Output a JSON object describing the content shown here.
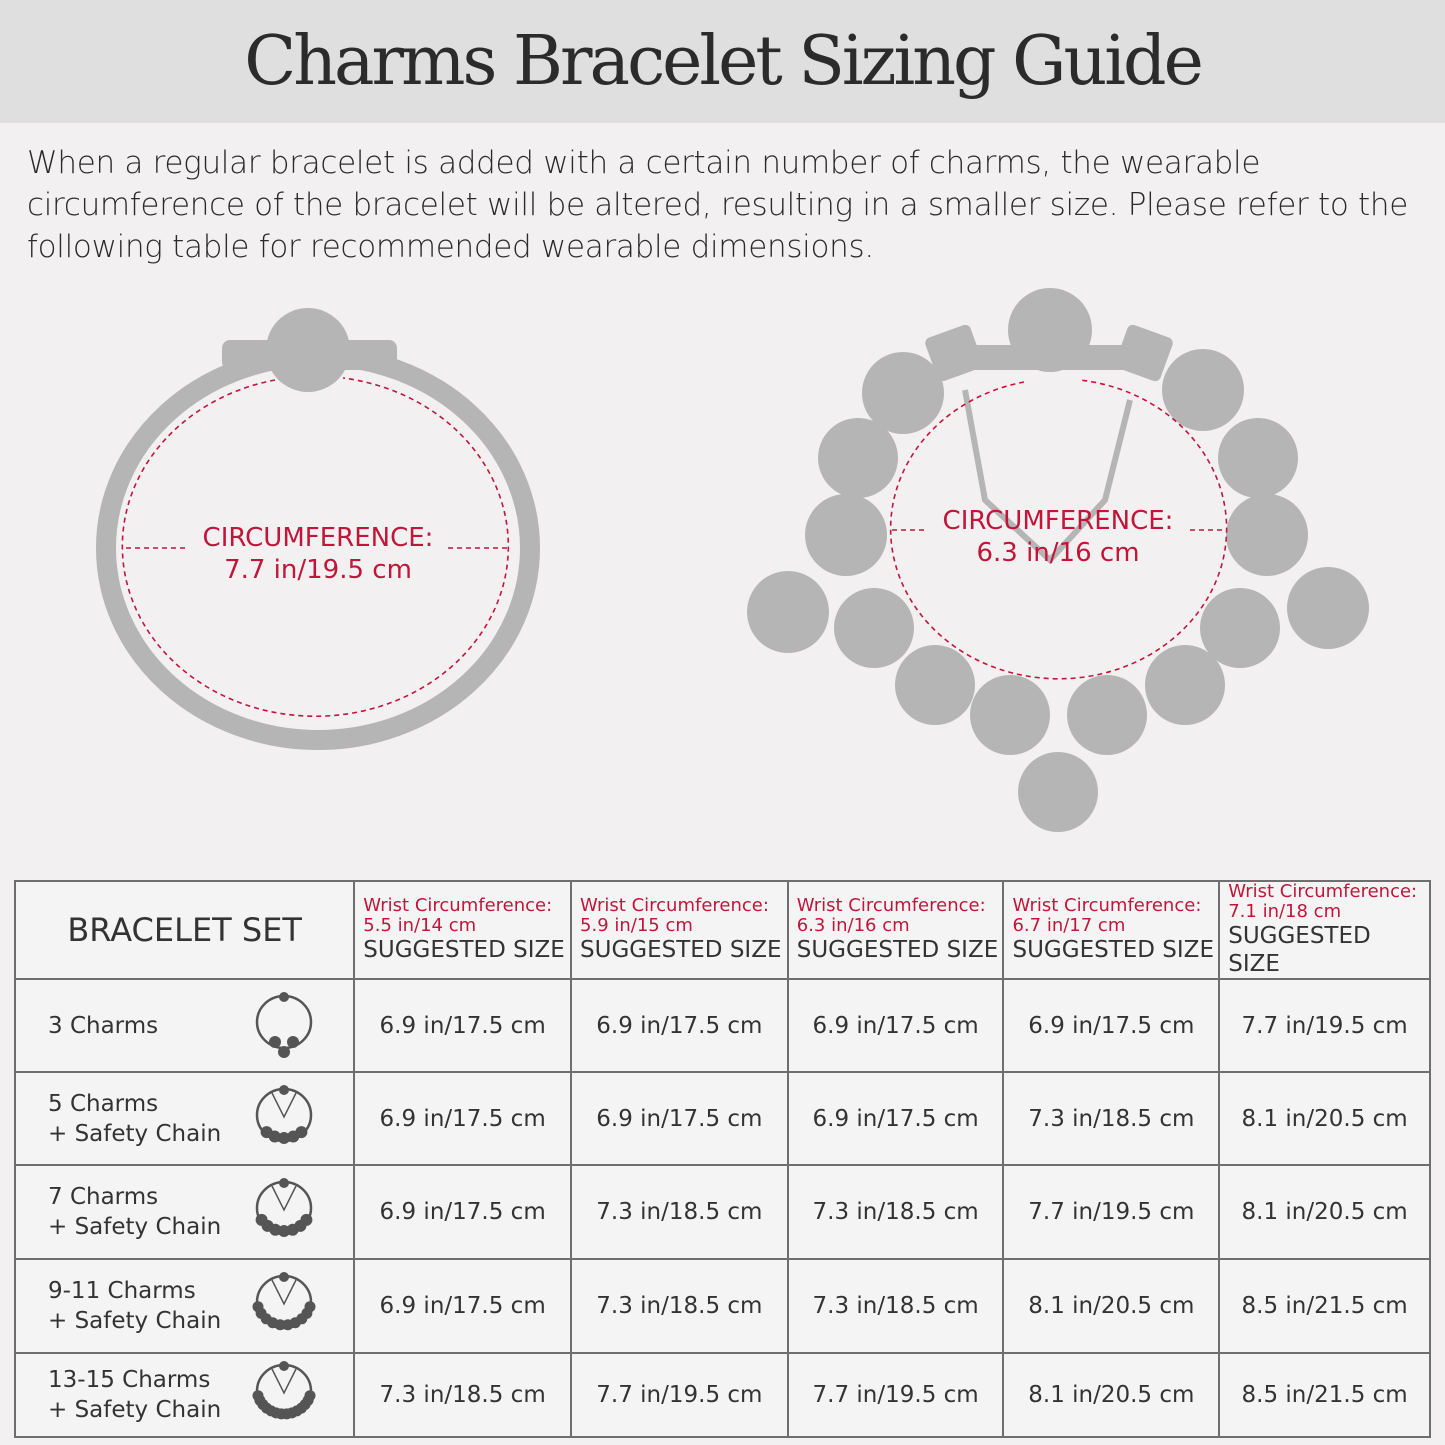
{
  "title": "Charms Bracelet Sizing Guide",
  "intro": "When a regular bracelet is added with a certain number of charms, the wearable circumference of the bracelet will be altered, resulting in a smaller size. Please refer to the following table for recommended wearable dimensions.",
  "diagrams": {
    "left": {
      "label": "CIRCUMFERENCE:",
      "value": "7.7 in/19.5 cm"
    },
    "right": {
      "label": "CIRCUMFERENCE:",
      "value": "6.3 in/16 cm"
    }
  },
  "colors": {
    "accent": "#c0163a",
    "bead": "#b5b5b5",
    "header_bg": "#e0dfdf"
  },
  "table": {
    "first_header": "BRACELET SET",
    "columns": [
      {
        "wrist_label": "Wrist Circumference:",
        "wrist": "5.5 in/14 cm",
        "suggested": "SUGGESTED SIZE"
      },
      {
        "wrist_label": "Wrist Circumference:",
        "wrist": "5.9 in/15 cm",
        "suggested": "SUGGESTED SIZE"
      },
      {
        "wrist_label": "Wrist Circumference:",
        "wrist": "6.3 in/16 cm",
        "suggested": "SUGGESTED SIZE"
      },
      {
        "wrist_label": "Wrist Circumference:",
        "wrist": "6.7 in/17 cm",
        "suggested": "SUGGESTED SIZE"
      },
      {
        "wrist_label": "Wrist Circumference:",
        "wrist": "7.1 in/18 cm",
        "suggested": "SUGGESTED SIZE"
      }
    ],
    "rows": [
      {
        "name": "3 Charms",
        "sub": "",
        "icon": "bracelet-3-charms-icon",
        "values": [
          "6.9 in/17.5 cm",
          "6.9 in/17.5 cm",
          "6.9 in/17.5 cm",
          "6.9 in/17.5 cm",
          "7.7 in/19.5 cm"
        ]
      },
      {
        "name": "5 Charms",
        "sub": "+ Safety Chain",
        "icon": "bracelet-5-charms-icon",
        "values": [
          "6.9 in/17.5 cm",
          "6.9 in/17.5 cm",
          "6.9 in/17.5 cm",
          "7.3 in/18.5 cm",
          "8.1 in/20.5 cm"
        ]
      },
      {
        "name": "7 Charms",
        "sub": "+ Safety Chain",
        "icon": "bracelet-7-charms-icon",
        "values": [
          "6.9 in/17.5 cm",
          "7.3 in/18.5 cm",
          "7.3 in/18.5 cm",
          "7.7 in/19.5 cm",
          "8.1 in/20.5 cm"
        ]
      },
      {
        "name": "9-11 Charms",
        "sub": "+ Safety Chain",
        "icon": "bracelet-9-11-charms-icon",
        "values": [
          "6.9 in/17.5 cm",
          "7.3 in/18.5 cm",
          "7.3 in/18.5 cm",
          "8.1 in/20.5 cm",
          "8.5 in/21.5 cm"
        ]
      },
      {
        "name": "13-15 Charms",
        "sub": "+ Safety Chain",
        "icon": "bracelet-13-15-charms-icon",
        "values": [
          "7.3 in/18.5 cm",
          "7.7 in/19.5 cm",
          "7.7 in/19.5 cm",
          "8.1 in/20.5 cm",
          "8.5 in/21.5 cm"
        ]
      }
    ]
  }
}
